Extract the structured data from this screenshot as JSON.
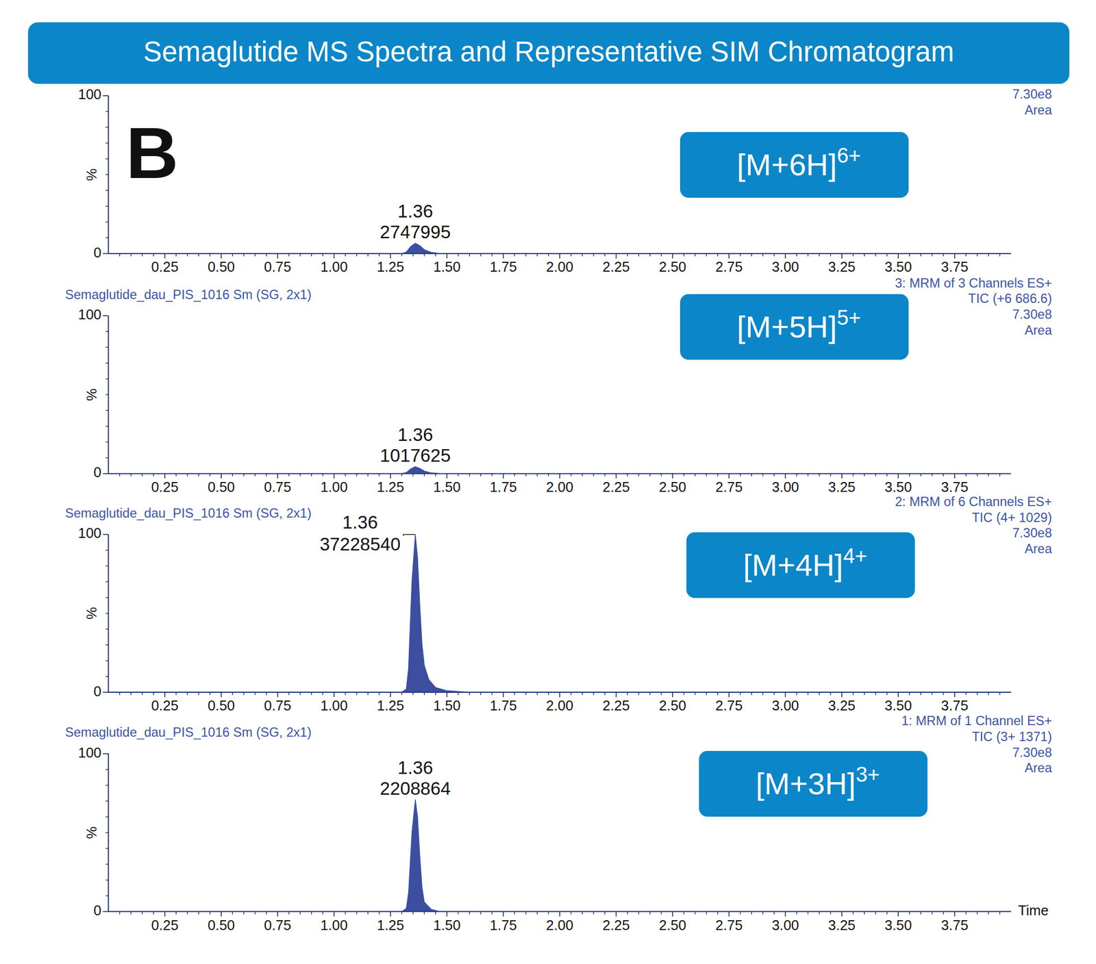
{
  "chart_data": [
    {
      "type": "line",
      "title": "Semaglutide MS Spectra and Representative SIM Chromatogram",
      "panel_label": "B",
      "header_right": [
        "7.30e8",
        "Area"
      ],
      "ion": {
        "text": "[M+6H]",
        "superscript": "6+"
      },
      "ylabel": "%",
      "xlim": [
        0,
        4
      ],
      "xticks": [
        0.25,
        {
          "value": 0.5,
          "label": "0.50"
        },
        0.75,
        {
          "value": 1,
          "label": "1.00"
        },
        1.25,
        {
          "value": 1.5,
          "label": "1.50"
        },
        1.75,
        {
          "value": 2,
          "label": "2.00"
        },
        2.25,
        {
          "value": 2.5,
          "label": "2.50"
        },
        2.75,
        {
          "value": 3,
          "label": "3.00"
        },
        3.25,
        {
          "value": 3.5,
          "label": "3.50"
        },
        3.75
      ],
      "ylim": [
        0,
        100
      ],
      "yticks": [
        0,
        100
      ],
      "x": [
        0,
        1.3,
        1.32,
        1.34,
        1.36,
        1.38,
        1.4,
        1.43,
        1.47,
        4
      ],
      "series": [
        {
          "color": "#3b4ea0",
          "values": [
            0,
            0,
            1,
            4.5,
            6.6,
            5,
            2.5,
            0.8,
            0,
            0
          ]
        }
      ],
      "peak": {
        "rt": 1.36,
        "area": 2747995
      }
    },
    {
      "type": "line",
      "header_left": "Semaglutide_dau_PIS_1016 Sm (SG, 2x1)",
      "header_right": [
        "3: MRM of 3 Channels ES+",
        "TIC (+6 686.6)",
        "7.30e8",
        "Area"
      ],
      "ion": {
        "text": "[M+5H]",
        "superscript": "5+"
      },
      "ylabel": "%",
      "xlim": [
        0,
        4
      ],
      "xticks": [
        0.25,
        {
          "value": 0.5,
          "label": "0.50"
        },
        0.75,
        {
          "value": 1,
          "label": "1.00"
        },
        1.25,
        {
          "value": 1.5,
          "label": "1.50"
        },
        1.75,
        {
          "value": 2,
          "label": "2.00"
        },
        2.25,
        {
          "value": 2.5,
          "label": "2.50"
        },
        2.75,
        {
          "value": 3,
          "label": "3.00"
        },
        3.25,
        {
          "value": 3.5,
          "label": "3.50"
        },
        3.75
      ],
      "ylim": [
        0,
        100
      ],
      "yticks": [
        0,
        100
      ],
      "x": [
        0,
        1.3,
        1.32,
        1.34,
        1.36,
        1.38,
        1.4,
        1.43,
        1.47,
        4
      ],
      "series": [
        {
          "color": "#3b4ea0",
          "values": [
            0,
            0,
            0.7,
            3,
            4.4,
            3.3,
            1.6,
            0.5,
            0,
            0
          ]
        }
      ],
      "peak": {
        "rt": 1.36,
        "area": 1017625
      }
    },
    {
      "type": "line",
      "header_left": "Semaglutide_dau_PIS_1016 Sm (SG, 2x1)",
      "header_right": [
        "2: MRM of 6 Channels ES+",
        "TIC (4+ 1029)",
        "7.30e8",
        "Area"
      ],
      "ion": {
        "text": "[M+4H]",
        "superscript": "4+"
      },
      "ylabel": "%",
      "xlim": [
        0,
        4
      ],
      "xticks": [
        0.25,
        {
          "value": 0.5,
          "label": "0.50"
        },
        0.75,
        {
          "value": 1,
          "label": "1.00"
        },
        1.25,
        {
          "value": 1.5,
          "label": "1.50"
        },
        1.75,
        {
          "value": 2,
          "label": "2.00"
        },
        2.25,
        {
          "value": 2.5,
          "label": "2.50"
        },
        2.75,
        {
          "value": 3,
          "label": "3.00"
        },
        3.25,
        {
          "value": 3.5,
          "label": "3.50"
        },
        3.75
      ],
      "ylim": [
        0,
        100
      ],
      "yticks": [
        0,
        100
      ],
      "x": [
        0,
        1.3,
        1.32,
        1.33,
        1.345,
        1.36,
        1.37,
        1.38,
        1.39,
        1.4,
        1.42,
        1.45,
        1.5,
        1.6,
        4
      ],
      "series": [
        {
          "color": "#3b4ea0",
          "values": [
            0,
            0,
            2,
            15,
            70,
            100,
            85,
            55,
            30,
            17,
            8,
            3,
            1,
            0,
            0
          ]
        }
      ],
      "peak": {
        "rt": 1.36,
        "area": 37228540
      }
    },
    {
      "type": "line",
      "header_left": "Semaglutide_dau_PIS_1016 Sm (SG, 2x1)",
      "header_right": [
        "1: MRM of 1 Channel ES+",
        "TIC (3+ 1371)",
        "7.30e8",
        "Area"
      ],
      "ion": {
        "text": "[M+3H]",
        "superscript": "3+"
      },
      "ylabel": "%",
      "xlabel": "Time",
      "xlim": [
        0,
        4
      ],
      "xticks": [
        0.25,
        {
          "value": 0.5,
          "label": "0.50"
        },
        0.75,
        {
          "value": 1,
          "label": "1.00"
        },
        1.25,
        {
          "value": 1.5,
          "label": "1.50"
        },
        1.75,
        {
          "value": 2,
          "label": "2.00"
        },
        2.25,
        {
          "value": 2.5,
          "label": "2.50"
        },
        2.75,
        {
          "value": 3,
          "label": "3.00"
        },
        3.25,
        {
          "value": 3.5,
          "label": "3.50"
        },
        3.75
      ],
      "ylim": [
        0,
        100
      ],
      "yticks": [
        0,
        100
      ],
      "x": [
        0,
        1.3,
        1.32,
        1.33,
        1.345,
        1.36,
        1.37,
        1.38,
        1.39,
        1.4,
        1.43,
        1.47,
        4
      ],
      "series": [
        {
          "color": "#3b4ea0",
          "values": [
            0,
            0,
            2,
            12,
            50,
            71,
            60,
            35,
            15,
            6,
            1.5,
            0,
            0
          ]
        }
      ],
      "peak": {
        "rt": 1.36,
        "area": 2208864
      }
    }
  ]
}
